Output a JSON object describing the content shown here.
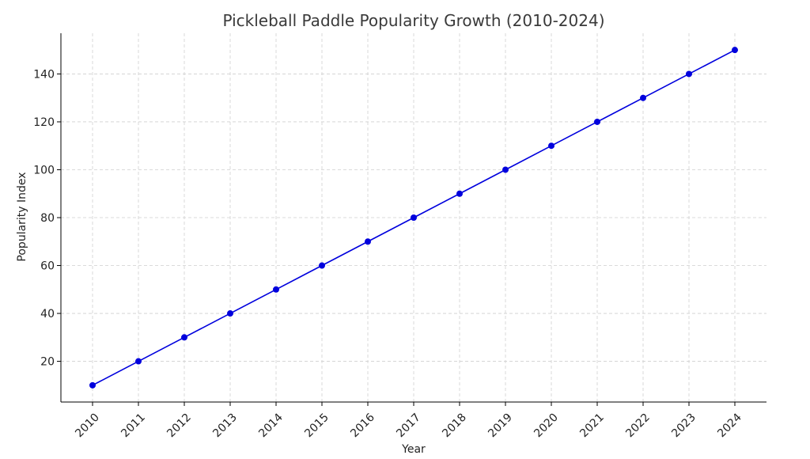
{
  "chart_data": {
    "type": "line",
    "title": "Pickleball Paddle Popularity Growth (2010-2024)",
    "xlabel": "Year",
    "ylabel": "Popularity Index",
    "x": [
      "2010",
      "2011",
      "2012",
      "2013",
      "2014",
      "2015",
      "2016",
      "2017",
      "2018",
      "2019",
      "2020",
      "2021",
      "2022",
      "2023",
      "2024"
    ],
    "series": [
      {
        "values": [
          10,
          20,
          30,
          40,
          50,
          60,
          70,
          80,
          90,
          100,
          110,
          120,
          130,
          140,
          150
        ],
        "color": "#0000dd",
        "marker": "circle"
      }
    ],
    "yticks": [
      20,
      40,
      60,
      80,
      100,
      120,
      140
    ],
    "ylim": [
      3,
      157
    ],
    "grid": true,
    "x_tick_rotation": "45 degrees",
    "colors": {
      "line": "#0000dd",
      "grid": "#cfcfcf",
      "axis": "#000000",
      "title": "#3a3a3a"
    }
  }
}
